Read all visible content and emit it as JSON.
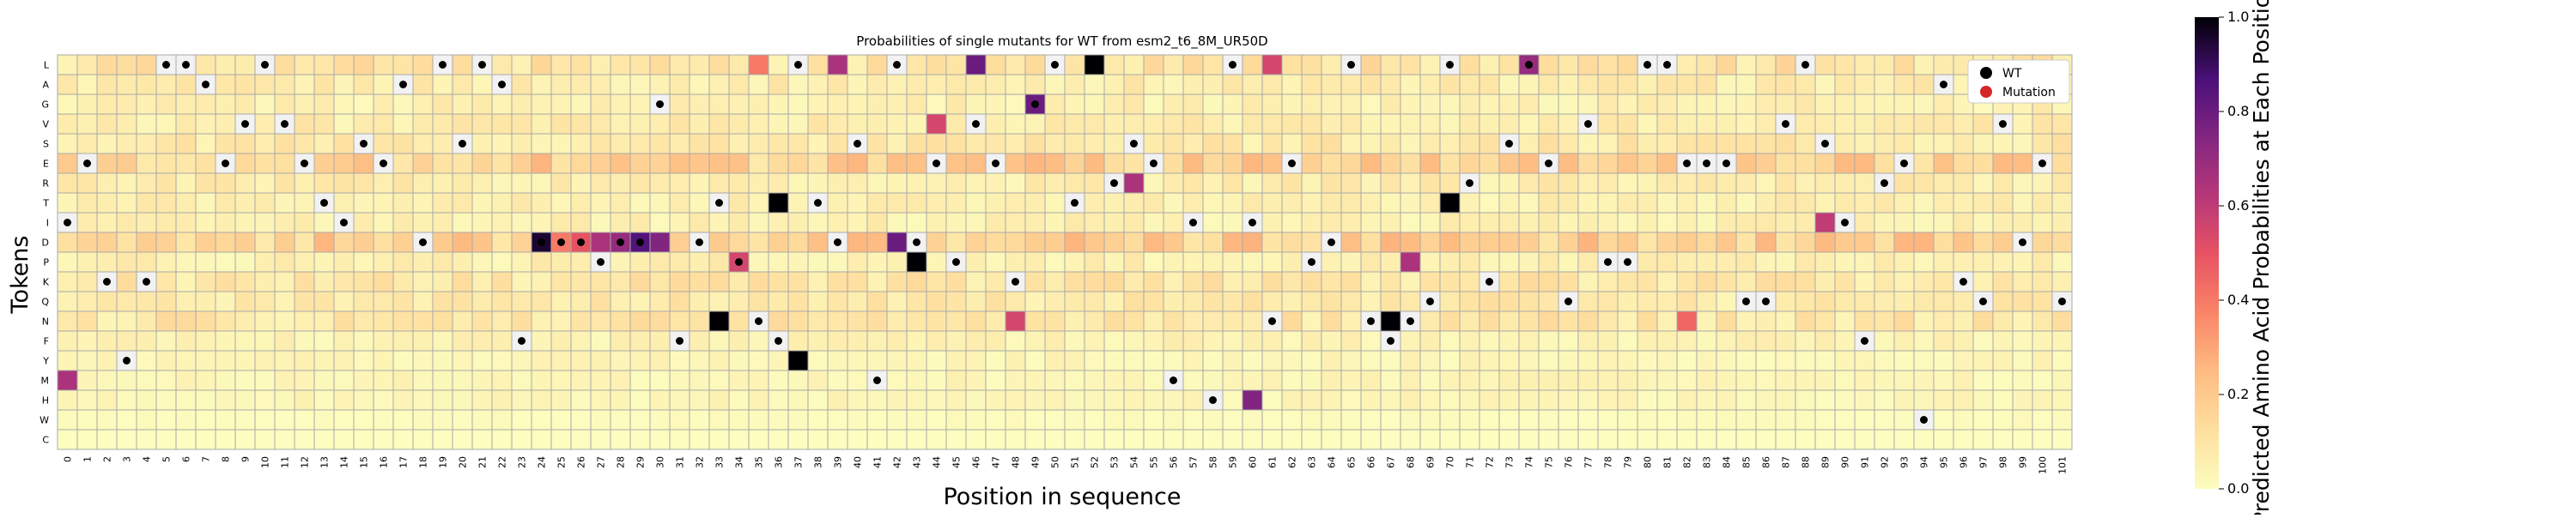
{
  "chart_data": {
    "type": "heatmap",
    "title": "Probabilities of single mutants for WT from esm2_t6_8M_UR50D",
    "xlabel": "Position in sequence",
    "ylabel": "Tokens",
    "colorbar_label": "Predicted Amino Acid Probabilities at Each Position",
    "colorbar_ticks": [
      "0.0",
      "0.2",
      "0.4",
      "0.6",
      "0.8",
      "1.0"
    ],
    "colorbar_range": [
      0.0,
      1.0
    ],
    "colormap": "magma_r",
    "tokens": [
      "L",
      "A",
      "G",
      "V",
      "S",
      "E",
      "R",
      "T",
      "I",
      "D",
      "P",
      "K",
      "Q",
      "N",
      "F",
      "Y",
      "M",
      "H",
      "W",
      "C"
    ],
    "positions": [
      "0",
      "1",
      "2",
      "3",
      "4",
      "5",
      "6",
      "7",
      "8",
      "9",
      "10",
      "11",
      "12",
      "13",
      "14",
      "15",
      "16",
      "17",
      "18",
      "19",
      "20",
      "21",
      "22",
      "23",
      "24",
      "25",
      "26",
      "27",
      "28",
      "29",
      "30",
      "31",
      "32",
      "33",
      "34",
      "35",
      "36",
      "37",
      "38",
      "39",
      "40",
      "41",
      "42",
      "43",
      "44",
      "45",
      "46",
      "47",
      "48",
      "49",
      "50",
      "51",
      "52",
      "53",
      "54",
      "55",
      "56",
      "57",
      "58",
      "59",
      "60",
      "61",
      "62",
      "63",
      "64",
      "65",
      "66",
      "67",
      "68",
      "69",
      "70",
      "71",
      "72",
      "73",
      "74",
      "75",
      "76",
      "77",
      "78",
      "79",
      "80",
      "81",
      "82",
      "83",
      "84",
      "85",
      "86",
      "87",
      "88",
      "89",
      "90",
      "91",
      "92",
      "93",
      "94",
      "95",
      "96",
      "97",
      "98",
      "99",
      "100",
      "101"
    ],
    "wt_sequence": "IEKYKLLAEVLVETISEADLSLAFDDDPDDGFDTPNFLTDSMLDEPVEKGLTLRSEMIHLINEPDLNFNQLRKSLEQVPPLLEEEQQVLSIFREWAKQVDEQ",
    "mutation_color": "#d62728",
    "wt_color": "#000000",
    "grid_color": "#a9a9a9",
    "cell_values_note_free": true,
    "high_values": [
      {
        "pos": 0,
        "token": "M",
        "value": 0.65
      },
      {
        "pos": 34,
        "token": "P",
        "value": 0.55
      },
      {
        "pos": 35,
        "token": "L",
        "value": 0.4
      },
      {
        "pos": 24,
        "token": "D",
        "value": 0.95
      },
      {
        "pos": 25,
        "token": "D",
        "value": 0.4
      },
      {
        "pos": 26,
        "token": "D",
        "value": 0.5
      },
      {
        "pos": 27,
        "token": "D",
        "value": 0.65
      },
      {
        "pos": 28,
        "token": "D",
        "value": 0.7
      },
      {
        "pos": 29,
        "token": "D",
        "value": 0.85
      },
      {
        "pos": 30,
        "token": "D",
        "value": 0.75
      },
      {
        "pos": 33,
        "token": "N",
        "value": 1.0
      },
      {
        "pos": 36,
        "token": "T",
        "value": 1.0
      },
      {
        "pos": 37,
        "token": "Y",
        "value": 1.0
      },
      {
        "pos": 39,
        "token": "L",
        "value": 0.65
      },
      {
        "pos": 42,
        "token": "D",
        "value": 0.8
      },
      {
        "pos": 43,
        "token": "P",
        "value": 1.0
      },
      {
        "pos": 44,
        "token": "V",
        "value": 0.55
      },
      {
        "pos": 46,
        "token": "L",
        "value": 0.8
      },
      {
        "pos": 48,
        "token": "N",
        "value": 0.55
      },
      {
        "pos": 49,
        "token": "G",
        "value": 0.8
      },
      {
        "pos": 52,
        "token": "L",
        "value": 1.0
      },
      {
        "pos": 54,
        "token": "R",
        "value": 0.65
      },
      {
        "pos": 60,
        "token": "H",
        "value": 0.75
      },
      {
        "pos": 61,
        "token": "L",
        "value": 0.55
      },
      {
        "pos": 67,
        "token": "N",
        "value": 1.0
      },
      {
        "pos": 68,
        "token": "P",
        "value": 0.65
      },
      {
        "pos": 70,
        "token": "T",
        "value": 1.0
      },
      {
        "pos": 74,
        "token": "L",
        "value": 0.7
      },
      {
        "pos": 82,
        "token": "N",
        "value": 0.45
      },
      {
        "pos": 89,
        "token": "I",
        "value": 0.6
      }
    ]
  },
  "legend": {
    "position": "top-right",
    "items": [
      {
        "label": "WT",
        "color": "#000000"
      },
      {
        "label": "Mutation",
        "color": "#d62728"
      }
    ]
  }
}
